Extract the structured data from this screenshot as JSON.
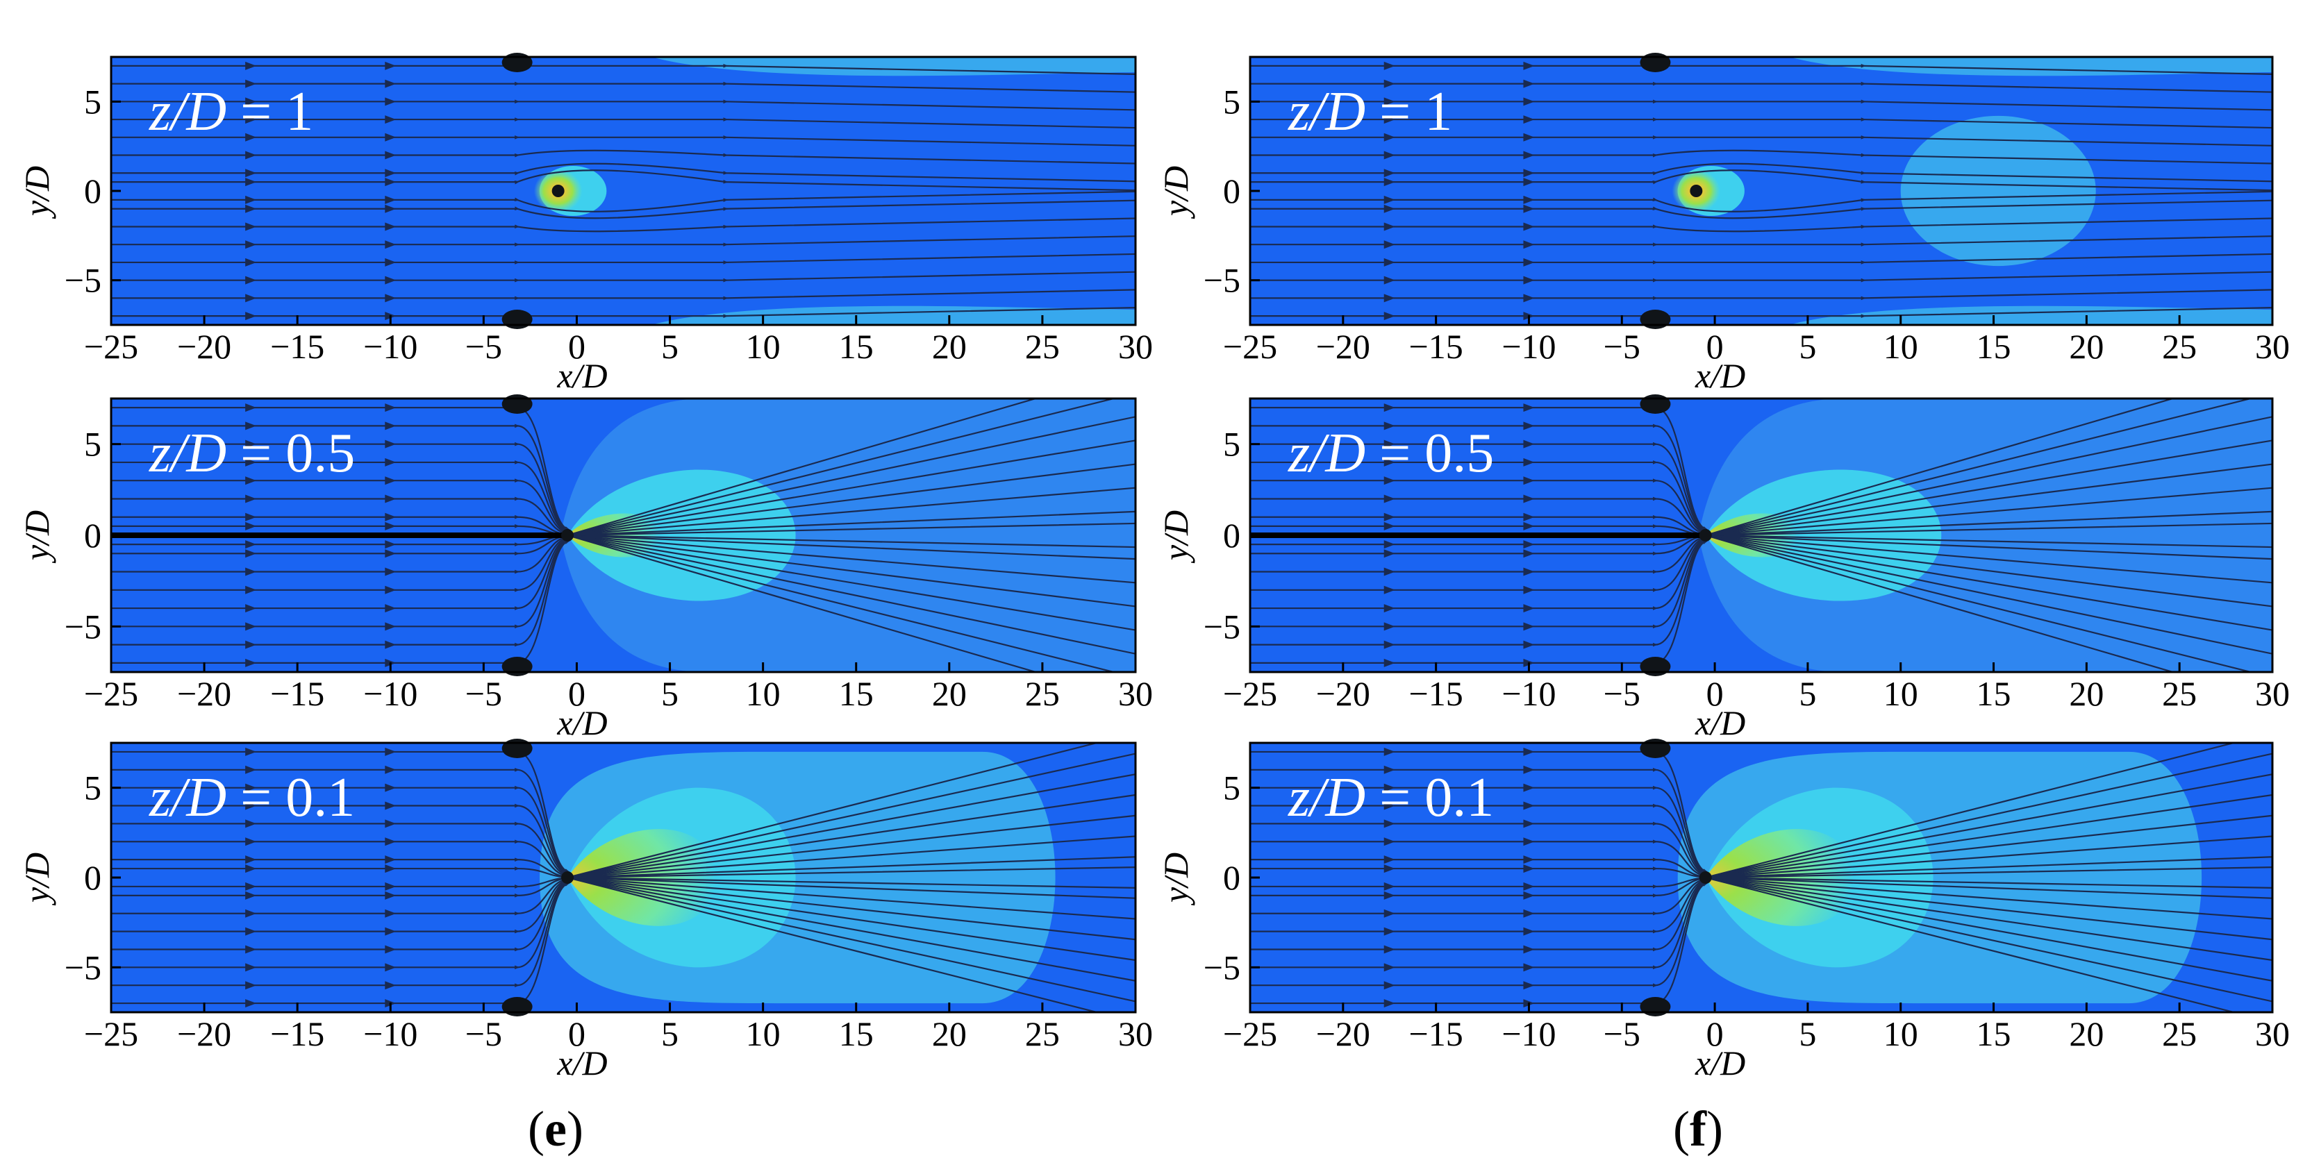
{
  "figure": {
    "panel_letters": [
      {
        "open": "(",
        "letter": "e",
        "close": ")"
      },
      {
        "open": "(",
        "letter": "f",
        "close": ")"
      }
    ]
  },
  "colors": {
    "background": "#1a64f2",
    "level_low": "#2f86f0",
    "level_mid": "#37a8ee",
    "level_high": "#3ed0ee",
    "level_hot": "#6fe6a8",
    "core_green": "#9be04a",
    "core_yellow": "#e8c83a",
    "core_orange": "#ee7a2a",
    "streamline": "#1a2a50",
    "vortex": "#101418"
  },
  "chart_data": [
    {
      "id": "e-1",
      "type": "contour",
      "column": "e",
      "row": 0,
      "plane_var": "z/D",
      "plane_eq": "=",
      "plane_val": "1",
      "xlabel": "x/D",
      "ylabel": "y/D",
      "xlim": [
        -25,
        30
      ],
      "ylim": [
        -7.5,
        7.5
      ],
      "xticks": [
        -25,
        -20,
        -15,
        -10,
        -5,
        0,
        5,
        10,
        15,
        20,
        25,
        30
      ],
      "yticks": [
        -5,
        0,
        5
      ],
      "source_x": -1,
      "edge_bands_x_start": 4,
      "inner_region_x_end": null,
      "mid_region_x_end": null
    },
    {
      "id": "f-1",
      "type": "contour",
      "column": "f",
      "row": 0,
      "plane_var": "z/D",
      "plane_eq": "=",
      "plane_val": "1",
      "xlabel": "x/D",
      "ylabel": "y/D",
      "xlim": [
        -25,
        30
      ],
      "ylim": [
        -7.5,
        7.5
      ],
      "xticks": [
        -25,
        -20,
        -15,
        -10,
        -5,
        0,
        5,
        10,
        15,
        20,
        25,
        30
      ],
      "yticks": [
        -5,
        0,
        5
      ],
      "source_x": -1,
      "edge_bands_x_start": 4,
      "inner_region_x_end": null,
      "mid_region_x_end": null,
      "wake_region_x": [
        10,
        20.5
      ]
    },
    {
      "id": "e-2",
      "type": "contour",
      "column": "e",
      "row": 1,
      "plane_var": "z/D",
      "plane_eq": "=",
      "plane_val": "0.5",
      "xlabel": "x/D",
      "ylabel": "y/D",
      "xlim": [
        -25,
        30
      ],
      "ylim": [
        -7.5,
        7.5
      ],
      "xticks": [
        -25,
        -20,
        -15,
        -10,
        -5,
        0,
        5,
        10,
        15,
        20,
        25,
        30
      ],
      "yticks": [
        -5,
        0,
        5
      ],
      "source_x": -0.5,
      "inner_region_x_end": 13.5,
      "mid_region_x_end": 30
    },
    {
      "id": "f-2",
      "type": "contour",
      "column": "f",
      "row": 1,
      "plane_var": "z/D",
      "plane_eq": "=",
      "plane_val": "0.5",
      "xlabel": "x/D",
      "ylabel": "y/D",
      "xlim": [
        -25,
        30
      ],
      "ylim": [
        -7.5,
        7.5
      ],
      "xticks": [
        -25,
        -20,
        -15,
        -10,
        -5,
        0,
        5,
        10,
        15,
        20,
        25,
        30
      ],
      "yticks": [
        -5,
        0,
        5
      ],
      "source_x": -0.5,
      "inner_region_x_end": 14,
      "mid_region_x_end": 30
    },
    {
      "id": "e-3",
      "type": "contour",
      "column": "e",
      "row": 2,
      "plane_var": "z/D",
      "plane_eq": "=",
      "plane_val": "0.1",
      "xlabel": "x/D",
      "ylabel": "y/D",
      "xlim": [
        -25,
        30
      ],
      "ylim": [
        -7.5,
        7.5
      ],
      "xticks": [
        -25,
        -20,
        -15,
        -10,
        -5,
        0,
        5,
        10,
        15,
        20,
        25,
        30
      ],
      "yticks": [
        -5,
        0,
        5
      ],
      "source_x": -0.5,
      "inner_region_x_end": 13.5,
      "mid_region_x_end": 27
    },
    {
      "id": "f-3",
      "type": "contour",
      "column": "f",
      "row": 2,
      "plane_var": "z/D",
      "plane_eq": "=",
      "plane_val": "0.1",
      "xlabel": "x/D",
      "ylabel": "y/D",
      "xlim": [
        -25,
        30
      ],
      "ylim": [
        -7.5,
        7.5
      ],
      "xticks": [
        -25,
        -20,
        -15,
        -10,
        -5,
        0,
        5,
        10,
        15,
        20,
        25,
        30
      ],
      "yticks": [
        -5,
        0,
        5
      ],
      "source_x": -0.5,
      "inner_region_x_end": 13.5,
      "mid_region_x_end": 27.5
    }
  ]
}
